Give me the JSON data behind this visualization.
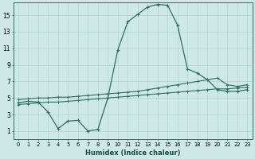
{
  "xlabel": "Humidex (Indice chaleur)",
  "background_color": "#cde8e5",
  "grid_color": "#b0d4d0",
  "line_color": "#2e6e64",
  "xlim": [
    -0.5,
    23.5
  ],
  "ylim": [
    0.0,
    16.5
  ],
  "xticks": [
    0,
    1,
    2,
    3,
    4,
    5,
    6,
    7,
    8,
    9,
    10,
    11,
    12,
    13,
    14,
    15,
    16,
    17,
    18,
    19,
    20,
    21,
    22,
    23
  ],
  "yticks": [
    1,
    3,
    5,
    7,
    9,
    11,
    13,
    15
  ],
  "line1_x": [
    0,
    1,
    2,
    3,
    4,
    5,
    6,
    7,
    8,
    9,
    10,
    11,
    12,
    13,
    14,
    15,
    16,
    17,
    18,
    19,
    20,
    21,
    22,
    23
  ],
  "line1_y": [
    4.4,
    4.6,
    4.5,
    3.3,
    1.3,
    2.2,
    2.3,
    1.0,
    1.2,
    5.0,
    10.8,
    14.2,
    15.1,
    16.0,
    16.3,
    16.2,
    13.8,
    8.5,
    8.0,
    7.2,
    6.0,
    5.8,
    5.8,
    6.0
  ],
  "line2_x": [
    0,
    1,
    2,
    3,
    4,
    5,
    6,
    7,
    8,
    9,
    10,
    11,
    12,
    13,
    14,
    15,
    16,
    17,
    18,
    19,
    20,
    21,
    22,
    23
  ],
  "line2_y": [
    4.8,
    4.9,
    5.0,
    5.0,
    5.1,
    5.1,
    5.2,
    5.3,
    5.4,
    5.5,
    5.6,
    5.7,
    5.8,
    6.0,
    6.2,
    6.4,
    6.6,
    6.8,
    7.0,
    7.2,
    7.4,
    6.6,
    6.4,
    6.6
  ],
  "line3_x": [
    0,
    1,
    2,
    3,
    4,
    5,
    6,
    7,
    8,
    9,
    10,
    11,
    12,
    13,
    14,
    15,
    16,
    17,
    18,
    19,
    20,
    21,
    22,
    23
  ],
  "line3_y": [
    4.2,
    4.3,
    4.4,
    4.5,
    4.5,
    4.6,
    4.7,
    4.8,
    4.9,
    5.0,
    5.1,
    5.2,
    5.3,
    5.4,
    5.5,
    5.6,
    5.7,
    5.8,
    5.9,
    6.0,
    6.1,
    6.1,
    6.2,
    6.3
  ]
}
